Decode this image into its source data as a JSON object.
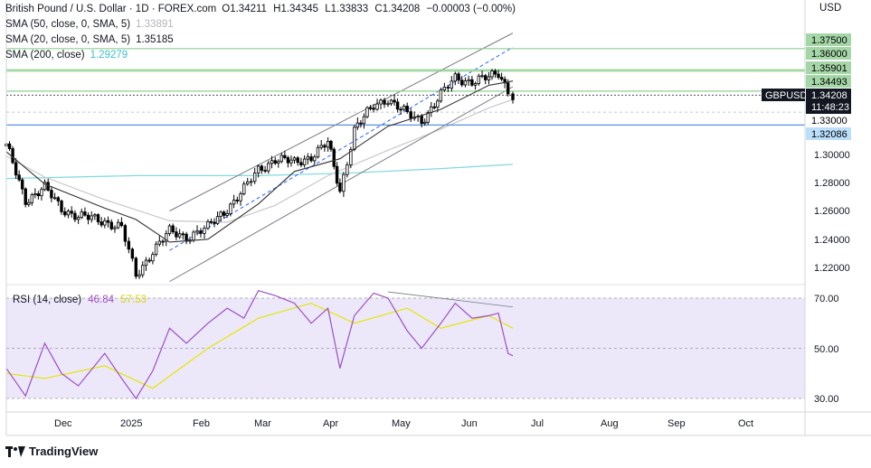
{
  "header": {
    "symbol_title": "British Pound / U.S. Dollar · 1D · FOREX.com",
    "ohlc": {
      "open": "O1.34211",
      "high": "H1.34345",
      "low": "L1.33833",
      "close": "C1.34208",
      "change": "−0.00003 (−0.00%)"
    },
    "currency": "USD"
  },
  "indicators": {
    "sma50": {
      "label": "SMA (50, close, 0, SMA, 5)",
      "value": "1.33891"
    },
    "sma20": {
      "label": "SMA (20, close, 0, SMA, 5)",
      "value": "1.35185"
    },
    "sma200": {
      "label": "SMA (200, close)",
      "value": "1.29279"
    },
    "rsi": {
      "label": "RSI (14, close)",
      "value": "46.84",
      "ma_value": "57.53"
    }
  },
  "price_axis": {
    "ticks": [
      "1.30000",
      "1.28000",
      "1.26000",
      "1.24000",
      "1.22000"
    ],
    "levels": [
      {
        "text": "1.37500",
        "value": 1.375,
        "style": "green"
      },
      {
        "text": "1.36000",
        "value": 1.36,
        "style": "green"
      },
      {
        "text": "1.35901",
        "value": 1.359,
        "style": "green"
      },
      {
        "text": "1.34493",
        "value": 1.3449,
        "style": "green"
      },
      {
        "text": "1.33000",
        "value": 1.33,
        "style": "plain"
      },
      {
        "text": "1.32086",
        "value": 1.3209,
        "style": "blue"
      }
    ],
    "current_symbol": "GBPUSD",
    "current_price": "1.34208",
    "countdown": "11:48:23"
  },
  "rsi_axis": {
    "ticks": [
      "70.00",
      "50.00",
      "30.00"
    ]
  },
  "time_axis": {
    "labels": [
      "Dec",
      "2025",
      "Feb",
      "Mar",
      "Apr",
      "May",
      "Jun",
      "Jul",
      "Aug",
      "Sep",
      "Oct"
    ]
  },
  "footer": {
    "brand": "TradingView"
  },
  "colors": {
    "up": "#ffffff",
    "down": "#000000",
    "sma50": "#c8c8c8",
    "sma20": "#333333",
    "sma200": "#7fd8e0",
    "rsi": "#9c4fc4",
    "rsi_ma": "#e6e600",
    "green_level": "#8fcf8f",
    "blue_level": "#5b8fe0"
  },
  "chart_data": {
    "type": "candlestick",
    "symbol": "GBPUSD",
    "timeframe": "1D",
    "yrange": [
      1.205,
      1.385
    ],
    "x_period": [
      "2024-11-20",
      "2025-06-19"
    ],
    "close_path": [
      {
        "date": "2024-11-20",
        "close": 1.306
      },
      {
        "date": "2024-11-28",
        "close": 1.268
      },
      {
        "date": "2024-12-06",
        "close": 1.276
      },
      {
        "date": "2024-12-13",
        "close": 1.262
      },
      {
        "date": "2024-12-20",
        "close": 1.256
      },
      {
        "date": "2024-12-31",
        "close": 1.253
      },
      {
        "date": "2025-01-07",
        "close": 1.248
      },
      {
        "date": "2025-01-13",
        "close": 1.214
      },
      {
        "date": "2025-01-20",
        "close": 1.232
      },
      {
        "date": "2025-01-27",
        "close": 1.245
      },
      {
        "date": "2025-02-03",
        "close": 1.242
      },
      {
        "date": "2025-02-12",
        "close": 1.248
      },
      {
        "date": "2025-02-20",
        "close": 1.262
      },
      {
        "date": "2025-02-27",
        "close": 1.275
      },
      {
        "date": "2025-03-05",
        "close": 1.289
      },
      {
        "date": "2025-03-12",
        "close": 1.297
      },
      {
        "date": "2025-03-20",
        "close": 1.294
      },
      {
        "date": "2025-03-27",
        "close": 1.299
      },
      {
        "date": "2025-04-03",
        "close": 1.308
      },
      {
        "date": "2025-04-08",
        "close": 1.274
      },
      {
        "date": "2025-04-14",
        "close": 1.318
      },
      {
        "date": "2025-04-22",
        "close": 1.334
      },
      {
        "date": "2025-04-28",
        "close": 1.34
      },
      {
        "date": "2025-05-06",
        "close": 1.328
      },
      {
        "date": "2025-05-12",
        "close": 1.324
      },
      {
        "date": "2025-05-20",
        "close": 1.342
      },
      {
        "date": "2025-05-26",
        "close": 1.354
      },
      {
        "date": "2025-06-02",
        "close": 1.352
      },
      {
        "date": "2025-06-09",
        "close": 1.354
      },
      {
        "date": "2025-06-13",
        "close": 1.358
      },
      {
        "date": "2025-06-17",
        "close": 1.346
      },
      {
        "date": "2025-06-19",
        "close": 1.342
      }
    ],
    "sma50": [
      {
        "date": "2024-11-20",
        "value": 1.299
      },
      {
        "date": "2024-12-06",
        "value": 1.284
      },
      {
        "date": "2024-12-31",
        "value": 1.268
      },
      {
        "date": "2025-01-27",
        "value": 1.253
      },
      {
        "date": "2025-02-20",
        "value": 1.252
      },
      {
        "date": "2025-03-12",
        "value": 1.264
      },
      {
        "date": "2025-04-03",
        "value": 1.285
      },
      {
        "date": "2025-04-28",
        "value": 1.303
      },
      {
        "date": "2025-05-20",
        "value": 1.318
      },
      {
        "date": "2025-06-09",
        "value": 1.333
      },
      {
        "date": "2025-06-19",
        "value": 1.339
      }
    ],
    "sma20": [
      {
        "date": "2024-11-20",
        "value": 1.302
      },
      {
        "date": "2024-12-06",
        "value": 1.279
      },
      {
        "date": "2024-12-31",
        "value": 1.262
      },
      {
        "date": "2025-01-13",
        "value": 1.254
      },
      {
        "date": "2025-01-27",
        "value": 1.238
      },
      {
        "date": "2025-02-12",
        "value": 1.24
      },
      {
        "date": "2025-03-05",
        "value": 1.265
      },
      {
        "date": "2025-03-20",
        "value": 1.288
      },
      {
        "date": "2025-04-08",
        "value": 1.297
      },
      {
        "date": "2025-04-28",
        "value": 1.32
      },
      {
        "date": "2025-05-20",
        "value": 1.332
      },
      {
        "date": "2025-06-09",
        "value": 1.349
      },
      {
        "date": "2025-06-19",
        "value": 1.352
      }
    ],
    "sma200": [
      {
        "date": "2024-11-20",
        "value": 1.283
      },
      {
        "date": "2025-01-13",
        "value": 1.285
      },
      {
        "date": "2025-03-05",
        "value": 1.285
      },
      {
        "date": "2025-04-14",
        "value": 1.287
      },
      {
        "date": "2025-05-20",
        "value": 1.29
      },
      {
        "date": "2025-06-19",
        "value": 1.293
      }
    ],
    "channel": {
      "upper": [
        {
          "date": "2025-01-27",
          "value": 1.26
        },
        {
          "date": "2025-06-19",
          "value": 1.386
        }
      ],
      "middle": [
        {
          "date": "2025-01-27",
          "value": 1.232
        },
        {
          "date": "2025-06-19",
          "value": 1.376
        }
      ],
      "lower": [
        {
          "date": "2025-01-27",
          "value": 1.21
        },
        {
          "date": "2025-06-19",
          "value": 1.348
        }
      ]
    },
    "horizontal_levels": [
      1.375,
      1.36,
      1.359,
      1.3449,
      1.3209
    ],
    "rsi": {
      "range": [
        23,
        78
      ],
      "values": [
        {
          "date": "2024-11-20",
          "value": 42
        },
        {
          "date": "2024-11-28",
          "value": 31
        },
        {
          "date": "2024-12-06",
          "value": 52
        },
        {
          "date": "2024-12-13",
          "value": 40
        },
        {
          "date": "2024-12-20",
          "value": 35
        },
        {
          "date": "2024-12-31",
          "value": 48
        },
        {
          "date": "2025-01-07",
          "value": 38
        },
        {
          "date": "2025-01-13",
          "value": 30
        },
        {
          "date": "2025-01-20",
          "value": 41
        },
        {
          "date": "2025-01-27",
          "value": 58
        },
        {
          "date": "2025-02-03",
          "value": 52
        },
        {
          "date": "2025-02-12",
          "value": 60
        },
        {
          "date": "2025-02-20",
          "value": 66
        },
        {
          "date": "2025-02-27",
          "value": 62
        },
        {
          "date": "2025-03-05",
          "value": 73
        },
        {
          "date": "2025-03-12",
          "value": 71
        },
        {
          "date": "2025-03-20",
          "value": 68
        },
        {
          "date": "2025-03-27",
          "value": 60
        },
        {
          "date": "2025-04-03",
          "value": 66
        },
        {
          "date": "2025-04-08",
          "value": 42
        },
        {
          "date": "2025-04-14",
          "value": 63
        },
        {
          "date": "2025-04-22",
          "value": 72
        },
        {
          "date": "2025-04-28",
          "value": 70
        },
        {
          "date": "2025-05-06",
          "value": 57
        },
        {
          "date": "2025-05-12",
          "value": 50
        },
        {
          "date": "2025-05-20",
          "value": 60
        },
        {
          "date": "2025-05-26",
          "value": 68
        },
        {
          "date": "2025-06-02",
          "value": 62
        },
        {
          "date": "2025-06-09",
          "value": 63
        },
        {
          "date": "2025-06-13",
          "value": 64
        },
        {
          "date": "2025-06-17",
          "value": 48
        },
        {
          "date": "2025-06-19",
          "value": 47
        }
      ],
      "ma": [
        {
          "date": "2024-11-20",
          "value": 40
        },
        {
          "date": "2024-12-06",
          "value": 38
        },
        {
          "date": "2024-12-31",
          "value": 43
        },
        {
          "date": "2025-01-20",
          "value": 34
        },
        {
          "date": "2025-02-12",
          "value": 50
        },
        {
          "date": "2025-03-05",
          "value": 62
        },
        {
          "date": "2025-03-27",
          "value": 68
        },
        {
          "date": "2025-04-14",
          "value": 60
        },
        {
          "date": "2025-05-06",
          "value": 66
        },
        {
          "date": "2025-05-20",
          "value": 58
        },
        {
          "date": "2025-06-09",
          "value": 63
        },
        {
          "date": "2025-06-19",
          "value": 58
        }
      ],
      "divergence_line": [
        {
          "date": "2025-04-28",
          "value": 72.5
        },
        {
          "date": "2025-06-19",
          "value": 66.5
        }
      ]
    }
  }
}
